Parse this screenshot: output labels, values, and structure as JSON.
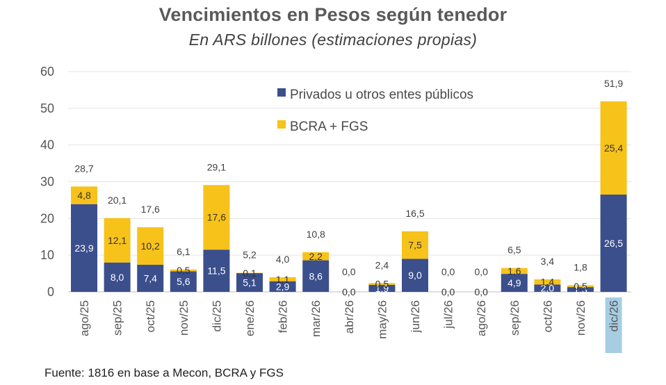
{
  "title": "Vencimientos en Pesos según tenedor",
  "subtitle": "En ARS billones (estimaciones propias)",
  "source": "Fuente: 1816 en base a Mecon, BCRA y FGS",
  "colors": {
    "privados": "#3b4f8c",
    "bcra": "#f7c21a",
    "highlight": "#a7cde2"
  },
  "chart_data": {
    "type": "bar",
    "stacked": true,
    "categories": [
      "ago/25",
      "sep/25",
      "oct/25",
      "nov/25",
      "dic/25",
      "ene/26",
      "feb/26",
      "mar/26",
      "abr/26",
      "may/26",
      "jun/26",
      "jul/26",
      "ago/26",
      "sep/26",
      "oct/26",
      "nov/26",
      "dic/26"
    ],
    "series": [
      {
        "name": "Privados u otros entes públicos",
        "values": [
          23.9,
          8.0,
          7.4,
          5.6,
          11.5,
          5.1,
          2.9,
          8.6,
          0.0,
          1.9,
          9.0,
          0.0,
          0.0,
          4.9,
          2.0,
          1.3,
          26.5
        ],
        "labels": [
          "23,9",
          "8,0",
          "7,4",
          "5,6",
          "11,5",
          "5,1",
          "2,9",
          "8,6",
          "0,0",
          "1,9",
          "9,0",
          "0,0",
          "0,0",
          "4,9",
          "2,0",
          "1,3",
          "26,5"
        ]
      },
      {
        "name": "BCRA + FGS",
        "values": [
          4.8,
          12.1,
          10.2,
          0.5,
          17.6,
          0.1,
          1.1,
          2.2,
          0.0,
          0.5,
          7.5,
          0.0,
          0.0,
          1.6,
          1.4,
          0.5,
          25.4
        ],
        "labels": [
          "4,8",
          "12,1",
          "10,2",
          "0,5",
          "17,6",
          "0,1",
          "1,1",
          "2,2",
          "",
          "0,5",
          "7,5",
          "",
          "",
          "1,6",
          "1,4",
          "0,5",
          "25,4"
        ]
      }
    ],
    "totals": [
      28.7,
      20.1,
      17.6,
      6.1,
      29.1,
      5.2,
      4.0,
      10.8,
      0.0,
      2.4,
      16.5,
      0.0,
      0.0,
      6.5,
      3.4,
      1.8,
      51.9
    ],
    "total_labels": [
      "28,7",
      "20,1",
      "17,6",
      "6,1",
      "29,1",
      "5,2",
      "4,0",
      "10,8",
      "0,0",
      "2,4",
      "16,5",
      "0,0",
      "0,0",
      "6,5",
      "3,4",
      "1,8",
      "51,9"
    ],
    "ylim": [
      0,
      60
    ],
    "yticks": [
      0,
      10,
      20,
      30,
      40,
      50,
      60
    ],
    "ytick_labels": [
      "0",
      "10",
      "20",
      "30",
      "40",
      "50",
      "60"
    ],
    "grid": true,
    "legend_position": "top-center",
    "highlighted_category": "dic/26"
  }
}
